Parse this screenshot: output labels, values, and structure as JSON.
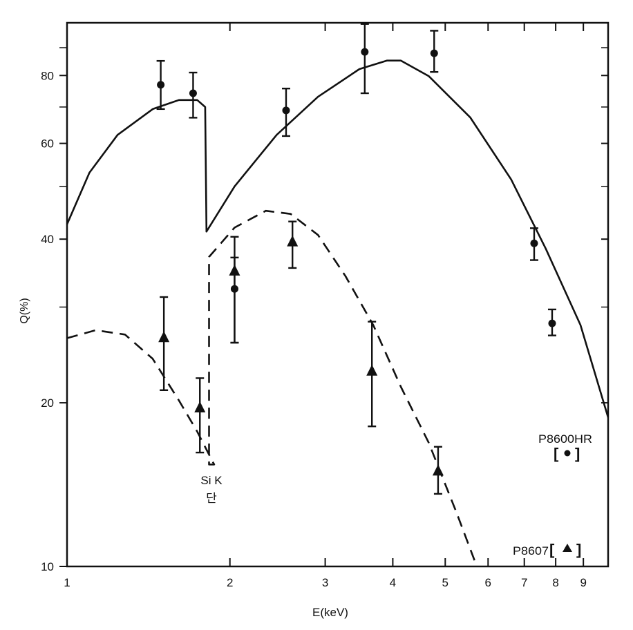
{
  "chart_data": {
    "type": "line",
    "title": "",
    "xlabel": "E(keV)",
    "ylabel": "Q(%)",
    "xscale": "log",
    "yscale": "log",
    "xlim": [
      1,
      10
    ],
    "ylim": [
      10,
      100
    ],
    "grid": false,
    "x_ticks": [
      {
        "v": 1,
        "label": "1"
      },
      {
        "v": 2,
        "label": "2"
      },
      {
        "v": 3,
        "label": "3"
      },
      {
        "v": 4,
        "label": "4"
      },
      {
        "v": 5,
        "label": "5"
      },
      {
        "v": 6,
        "label": "6"
      },
      {
        "v": 7,
        "label": "7"
      },
      {
        "v": 8,
        "label": "8"
      },
      {
        "v": 9,
        "label": "9"
      }
    ],
    "y_ticks": [
      {
        "v": 10,
        "label": "10"
      },
      {
        "v": 20,
        "label": "20"
      },
      {
        "v": 40,
        "label": "40"
      },
      {
        "v": 60,
        "label": "60"
      },
      {
        "v": 80,
        "label": "80"
      }
    ],
    "y_minor": [
      30,
      50,
      70,
      90
    ],
    "annotation": {
      "line1": "Si K",
      "line2": "단",
      "E": 1.84,
      "Q": 13.2
    },
    "legend": [
      {
        "name": "P8600HR",
        "marker": "circle",
        "placement": "bottom-right"
      },
      {
        "name": "P8607",
        "marker": "triangle",
        "placement": "bottom-right"
      }
    ],
    "series": [
      {
        "name": "P8600HR model",
        "style": "solid",
        "points": [
          [
            1.0,
            42.6
          ],
          [
            1.1,
            53.0
          ],
          [
            1.24,
            62.2
          ],
          [
            1.44,
            69.4
          ],
          [
            1.61,
            72.1
          ],
          [
            1.74,
            72.1
          ],
          [
            1.8,
            70.0
          ],
          [
            1.81,
            41.3
          ],
          [
            2.04,
            50.0
          ],
          [
            2.44,
            62.2
          ],
          [
            2.91,
            73.1
          ],
          [
            3.47,
            82.2
          ],
          [
            3.9,
            85.2
          ],
          [
            4.14,
            85.2
          ],
          [
            4.66,
            79.8
          ],
          [
            5.56,
            67.0
          ],
          [
            6.62,
            51.5
          ],
          [
            7.67,
            38.4
          ],
          [
            8.89,
            27.8
          ],
          [
            10.0,
            18.8
          ]
        ]
      },
      {
        "name": "P8607 model",
        "style": "dashed",
        "points": [
          [
            1.0,
            26.3
          ],
          [
            1.13,
            27.2
          ],
          [
            1.28,
            26.7
          ],
          [
            1.44,
            24.1
          ],
          [
            1.61,
            20.2
          ],
          [
            1.74,
            17.7
          ],
          [
            1.87,
            15.4
          ],
          [
            1.83,
            15.4
          ],
          [
            1.83,
            37.1
          ],
          [
            2.04,
            42.0
          ],
          [
            2.33,
            45.1
          ],
          [
            2.59,
            44.5
          ],
          [
            2.91,
            40.7
          ],
          [
            3.27,
            34.2
          ],
          [
            3.68,
            27.8
          ],
          [
            4.14,
            21.4
          ],
          [
            4.66,
            16.9
          ],
          [
            5.24,
            12.6
          ],
          [
            5.72,
            10.0
          ]
        ]
      },
      {
        "name": "P8600HR",
        "style": "marker-circle",
        "points": [
          {
            "E": 1.49,
            "Q": 76.9,
            "lo": 69.4,
            "hi": 85.1
          },
          {
            "E": 1.71,
            "Q": 74.2,
            "lo": 66.9,
            "hi": 81.0
          },
          {
            "E": 2.04,
            "Q": 32.4,
            "lo": 25.8,
            "hi": 37.0
          },
          {
            "E": 2.54,
            "Q": 69.0,
            "lo": 61.9,
            "hi": 75.7
          },
          {
            "E": 3.55,
            "Q": 88.4,
            "lo": 74.2,
            "hi": 99.5
          },
          {
            "E": 4.77,
            "Q": 87.9,
            "lo": 81.2,
            "hi": 96.7
          },
          {
            "E": 7.3,
            "Q": 39.3,
            "lo": 36.6,
            "hi": 41.9
          },
          {
            "E": 7.88,
            "Q": 28.0,
            "lo": 26.6,
            "hi": 29.7
          }
        ]
      },
      {
        "name": "P8607",
        "style": "marker-triangle",
        "points": [
          {
            "E": 1.51,
            "Q": 26.4,
            "lo": 21.1,
            "hi": 31.3
          },
          {
            "E": 1.76,
            "Q": 19.6,
            "lo": 16.2,
            "hi": 22.2
          },
          {
            "E": 2.04,
            "Q": 35.0,
            "lo": 25.8,
            "hi": 40.4
          },
          {
            "E": 2.61,
            "Q": 39.6,
            "lo": 35.4,
            "hi": 43.1
          },
          {
            "E": 3.66,
            "Q": 22.9,
            "lo": 18.1,
            "hi": 28.2
          },
          {
            "E": 4.85,
            "Q": 15.0,
            "lo": 13.6,
            "hi": 16.6
          }
        ]
      }
    ]
  }
}
